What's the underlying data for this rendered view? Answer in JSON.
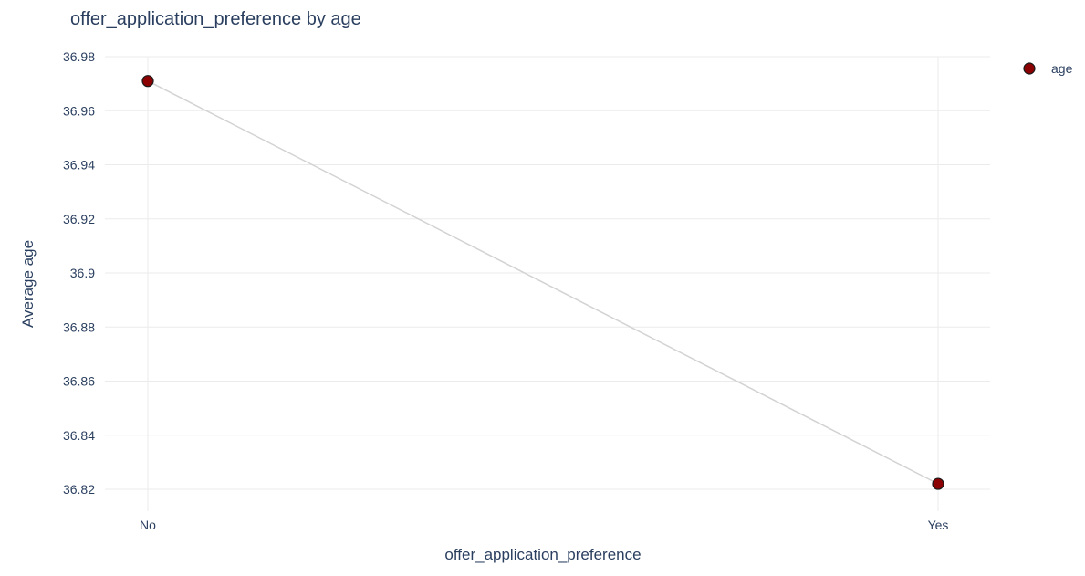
{
  "chart_data": {
    "type": "line",
    "title": "offer_application_preference by age",
    "xlabel": "offer_application_preference",
    "ylabel": "Average age",
    "categories": [
      "No",
      "Yes"
    ],
    "series": [
      {
        "name": "age",
        "values": [
          36.971,
          36.822
        ]
      }
    ],
    "ylim": [
      36.81,
      36.98
    ],
    "yticks": [
      36.82,
      36.84,
      36.86,
      36.88,
      36.9,
      36.92,
      36.94,
      36.96,
      36.98
    ],
    "ytick_labels": [
      "36.82",
      "36.84",
      "36.86",
      "36.88",
      "36.9",
      "36.92",
      "36.94",
      "36.96",
      "36.98"
    ],
    "grid": true,
    "legend_position": "top-right",
    "colors": {
      "marker_fill": "#8b0000",
      "marker_stroke": "#1a1a1a",
      "line": "#d3d3d3",
      "grid": "#ebebeb",
      "text": "#2a3f5f"
    }
  }
}
